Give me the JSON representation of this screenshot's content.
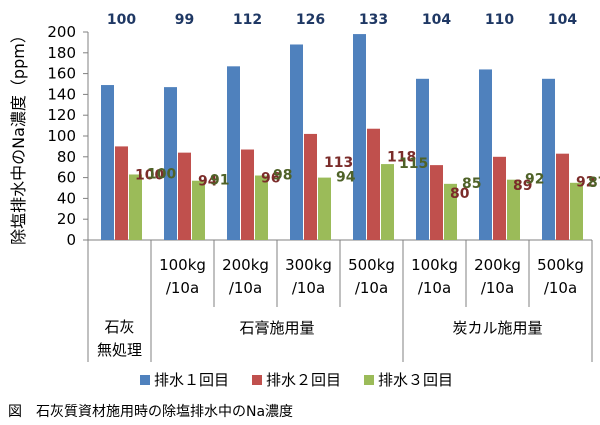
{
  "chart_data": {
    "type": "bar",
    "ylabel": "除塩排水中のNa濃度（ppm）",
    "ylim": [
      0,
      200
    ],
    "yticks": [
      0,
      20,
      40,
      60,
      80,
      100,
      120,
      140,
      160,
      180,
      200
    ],
    "categories": [
      {
        "sub": [
          "",
          ""
        ],
        "group": "石灰無処理"
      },
      {
        "sub": [
          "100kg",
          "/10a"
        ],
        "group": "石膏施用量"
      },
      {
        "sub": [
          "200kg",
          "/10a"
        ],
        "group": "石膏施用量"
      },
      {
        "sub": [
          "300kg",
          "/10a"
        ],
        "group": "石膏施用量"
      },
      {
        "sub": [
          "500kg",
          "/10a"
        ],
        "group": "石膏施用量"
      },
      {
        "sub": [
          "100kg",
          "/10a"
        ],
        "group": "炭カル施用量"
      },
      {
        "sub": [
          "200kg",
          "/10a"
        ],
        "group": "炭カル施用量"
      },
      {
        "sub": [
          "500kg",
          "/10a"
        ],
        "group": "炭カル施用量"
      }
    ],
    "groups": [
      {
        "lines": [
          "石灰",
          "無処理"
        ],
        "span": [
          0,
          0
        ]
      },
      {
        "lines": [
          "石膏施用量"
        ],
        "span": [
          1,
          4
        ]
      },
      {
        "lines": [
          "炭カル施用量"
        ],
        "span": [
          5,
          7
        ]
      }
    ],
    "series": [
      {
        "name": "排水１回目",
        "color": "#4F81BD",
        "label_color": "#1F3864",
        "values": [
          149,
          147,
          167,
          188,
          198,
          155,
          164,
          155
        ],
        "labels": [
          "100",
          "99",
          "112",
          "126",
          "133",
          "104",
          "110",
          "104"
        ]
      },
      {
        "name": "排水２回目",
        "color": "#C0504D",
        "label_color": "#7B2C2A",
        "values": [
          90,
          84,
          87,
          102,
          107,
          72,
          80,
          83
        ],
        "labels": [
          "100",
          "94",
          "96",
          "113",
          "118",
          "80",
          "89",
          "92"
        ]
      },
      {
        "name": "排水３回目",
        "color": "#9BBB59",
        "label_color": "#4F6228",
        "values": [
          63,
          57,
          62,
          60,
          73,
          54,
          58,
          55
        ],
        "labels": [
          "100",
          "91",
          "98",
          "94",
          "115",
          "85",
          "92",
          "87"
        ]
      }
    ],
    "legend_position": "bottom"
  },
  "caption": "図　石灰質資材施用時の除塩排水中のNa濃度"
}
